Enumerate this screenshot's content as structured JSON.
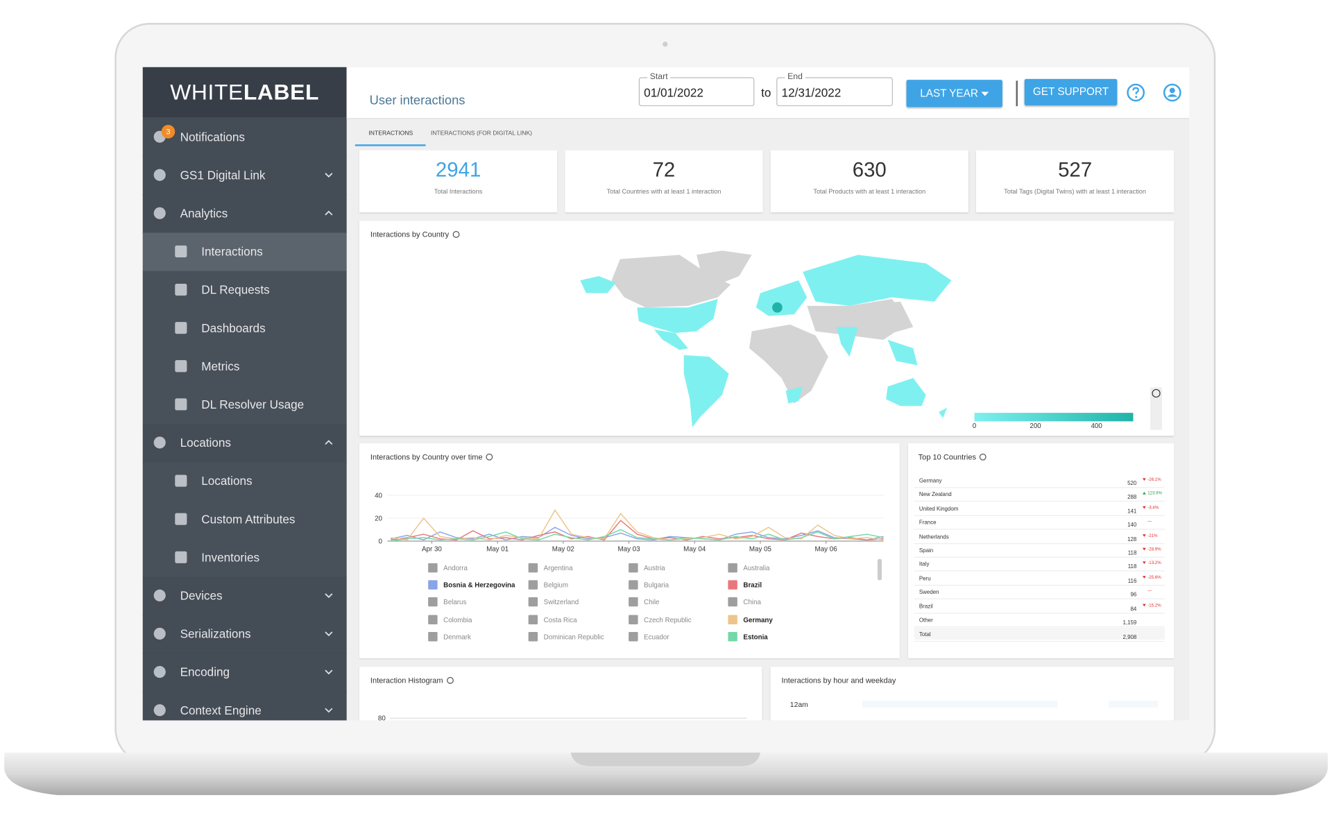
{
  "sidebar": {
    "logo": {
      "light": "WHITE",
      "bold": "LABEL"
    },
    "menu": [
      {
        "label": "Notifications",
        "badge": "3",
        "level": 1
      },
      {
        "label": "GS1 Digital Link",
        "level": 1,
        "chevron": "down"
      },
      {
        "label": "Analytics",
        "level": 1,
        "chevron": "up"
      },
      {
        "label": "Interactions",
        "level": 2,
        "active": true
      },
      {
        "label": "DL Requests",
        "level": 2
      },
      {
        "label": "Dashboards",
        "level": 2
      },
      {
        "label": "Metrics",
        "level": 2
      },
      {
        "label": "DL Resolver Usage",
        "level": 2
      },
      {
        "label": "Locations",
        "level": 1,
        "chevron": "up"
      },
      {
        "label": "Locations",
        "level": 2
      },
      {
        "label": "Custom Attributes",
        "level": 2
      },
      {
        "label": "Inventories",
        "level": 2
      },
      {
        "label": "Devices",
        "level": 1,
        "chevron": "down"
      },
      {
        "label": "Serializations",
        "level": 1,
        "chevron": "down"
      },
      {
        "label": "Encoding",
        "level": 1,
        "chevron": "down"
      },
      {
        "label": "Context Engine",
        "level": 1,
        "chevron": "down"
      }
    ]
  },
  "header": {
    "title": "User interactions",
    "start": {
      "label": "Start",
      "value": "01/01/2022"
    },
    "separator": "to",
    "end": {
      "label": "End",
      "value": "12/31/2022"
    },
    "range_button": "LAST YEAR",
    "support_button": "GET SUPPORT"
  },
  "tabs": [
    "INTERACTIONS",
    "INTERACTIONS (FOR DIGITAL LINK)"
  ],
  "kpis": [
    {
      "value": "2941",
      "label": "Total Interactions"
    },
    {
      "value": "72",
      "label": "Total Countries with at least 1 interaction"
    },
    {
      "value": "630",
      "label": "Total Products with at least 1 interaction"
    },
    {
      "value": "527",
      "label": "Total Tags (Digital Twins) with at least 1 interaction"
    }
  ],
  "map": {
    "title": "Interactions by Country",
    "scale": {
      "range": [
        0,
        520
      ],
      "ticks": [
        0,
        200,
        400
      ],
      "colors": [
        "#7ff0f0",
        "#1fb3a8"
      ]
    }
  },
  "chart_data": {
    "type": "line",
    "title": "Interactions by Country over time",
    "x": [
      0,
      1,
      2,
      3,
      4,
      5,
      6,
      7,
      8,
      9,
      10,
      11,
      12,
      13,
      14,
      15,
      16,
      17,
      18,
      19,
      20,
      21,
      22,
      23,
      24,
      25,
      26,
      27,
      28,
      29,
      30
    ],
    "xlim": [
      0,
      30
    ],
    "xticks": [
      {
        "value": 2.5,
        "label": "Apr 30"
      },
      {
        "value": 6.5,
        "label": "May 01"
      },
      {
        "value": 10.5,
        "label": "May 02"
      },
      {
        "value": 14.5,
        "label": "May 03"
      },
      {
        "value": 18.5,
        "label": "May 04"
      },
      {
        "value": 22.5,
        "label": "May 05"
      },
      {
        "value": 26.5,
        "label": "May 06"
      }
    ],
    "ylim": [
      0,
      40
    ],
    "yticks": [
      0,
      20,
      40
    ],
    "series": [
      {
        "name": "Andorra",
        "color": "#9e9e9e"
      },
      {
        "name": "Argentina",
        "color": "#9e9e9e"
      },
      {
        "name": "Austria",
        "color": "#9e9e9e"
      },
      {
        "name": "Australia",
        "color": "#9e9e9e"
      },
      {
        "name": "Bosnia & Herzegovina",
        "color": "#8aa4e8",
        "values": [
          2,
          5,
          1,
          8,
          3,
          2,
          6,
          1,
          4,
          3,
          12,
          5,
          2,
          3,
          7,
          2,
          1,
          4,
          3,
          2,
          1,
          6,
          8,
          3,
          2,
          5,
          9,
          3,
          2,
          1,
          4
        ]
      },
      {
        "name": "Belgium",
        "color": "#9e9e9e"
      },
      {
        "name": "Bulgaria",
        "color": "#9e9e9e"
      },
      {
        "name": "Brazil",
        "color": "#e8787a",
        "values": [
          1,
          3,
          6,
          2,
          1,
          9,
          2,
          3,
          1,
          5,
          8,
          2,
          4,
          1,
          18,
          6,
          2,
          3,
          1,
          4,
          2,
          3,
          5,
          2,
          1,
          7,
          4,
          2,
          3,
          1,
          2
        ]
      },
      {
        "name": "Belarus",
        "color": "#9e9e9e"
      },
      {
        "name": "Switzerland",
        "color": "#9e9e9e"
      },
      {
        "name": "Chile",
        "color": "#9e9e9e"
      },
      {
        "name": "China",
        "color": "#9e9e9e"
      },
      {
        "name": "Colombia",
        "color": "#9e9e9e"
      },
      {
        "name": "Costa Rica",
        "color": "#9e9e9e"
      },
      {
        "name": "Czech Republic",
        "color": "#9e9e9e"
      },
      {
        "name": "Germany",
        "color": "#eec48a",
        "values": [
          3,
          1,
          20,
          4,
          2,
          3,
          1,
          5,
          3,
          2,
          27,
          6,
          3,
          2,
          24,
          8,
          3,
          1,
          2,
          3,
          6,
          2,
          4,
          12,
          3,
          2,
          14,
          5,
          2,
          3,
          1
        ]
      },
      {
        "name": "Denmark",
        "color": "#9e9e9e"
      },
      {
        "name": "Dominican Republic",
        "color": "#9e9e9e"
      },
      {
        "name": "Ecuador",
        "color": "#9e9e9e"
      },
      {
        "name": "Estonia",
        "color": "#74d8a8",
        "values": [
          0,
          2,
          3,
          1,
          2,
          1,
          4,
          8,
          2,
          1,
          6,
          3,
          1,
          4,
          10,
          3,
          2,
          1,
          3,
          2,
          1,
          4,
          2,
          6,
          1,
          3,
          8,
          2,
          4,
          6,
          3
        ]
      }
    ]
  },
  "top_countries": {
    "title": "Top 10 Countries",
    "rows": [
      {
        "name": "Germany",
        "value": "520",
        "change": "-26.1%",
        "trend": "down"
      },
      {
        "name": "New Zealand",
        "value": "288",
        "change": "123.9%",
        "trend": "up"
      },
      {
        "name": "United Kingdom",
        "value": "141",
        "change": "-3.4%",
        "trend": "down"
      },
      {
        "name": "France",
        "value": "140",
        "change": "—"
      },
      {
        "name": "Netherlands",
        "value": "128",
        "change": "-21%",
        "trend": "down"
      },
      {
        "name": "Spain",
        "value": "118",
        "change": "-28.9%",
        "trend": "down"
      },
      {
        "name": "Italy",
        "value": "118",
        "change": "-13.2%",
        "trend": "down"
      },
      {
        "name": "Peru",
        "value": "116",
        "change": "-25.6%",
        "trend": "down"
      },
      {
        "name": "Sweden",
        "value": "96",
        "change": "—"
      },
      {
        "name": "Brazil",
        "value": "84",
        "change": "-15.2%",
        "trend": "down"
      },
      {
        "name": "Other",
        "value": "1,159"
      },
      {
        "name": "Total",
        "value": "2,908"
      }
    ]
  },
  "histogram": {
    "title": "Interaction Histogram",
    "ytick": "80"
  },
  "heatmap": {
    "title": "Interactions by hour and weekday",
    "row": "12am"
  }
}
